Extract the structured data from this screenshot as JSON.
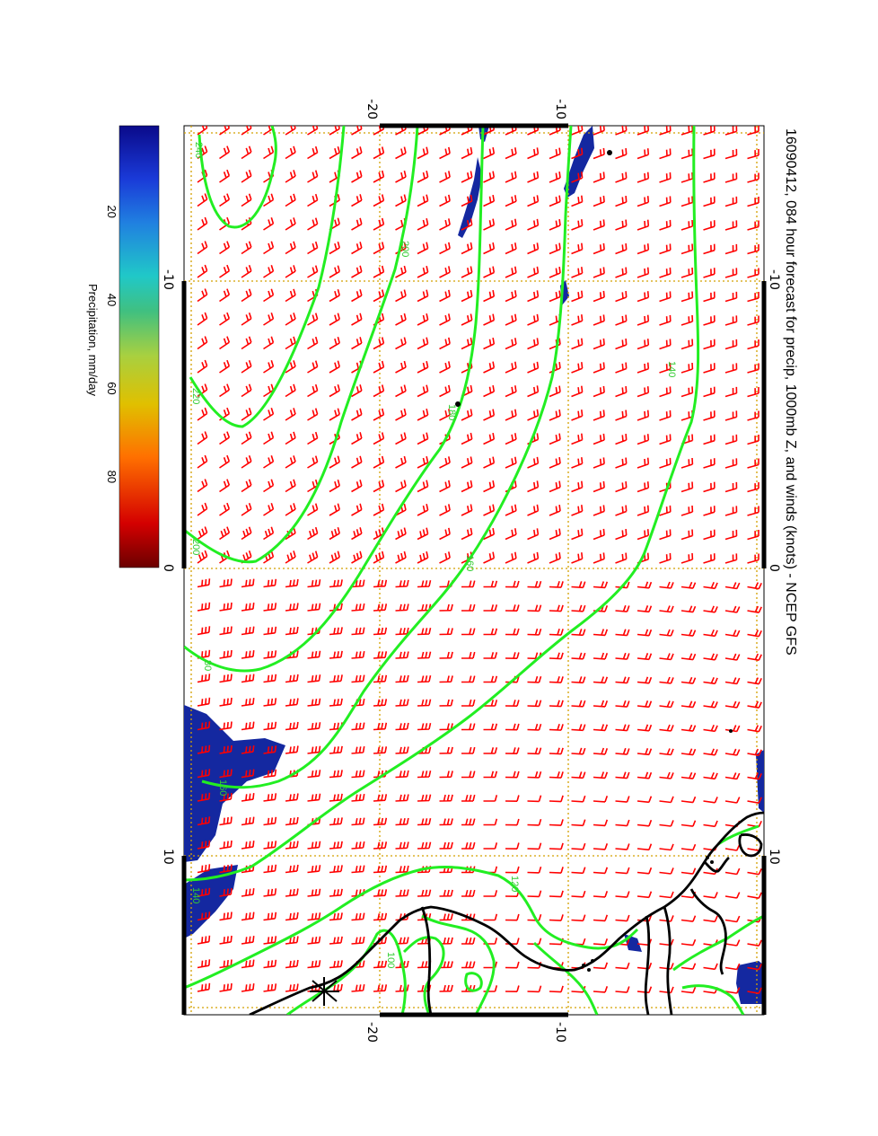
{
  "title": "16090412, 084 hour forecast for precip, 1000mb Z, and winds (knots) - NCEP GFS",
  "axes": {
    "lon_ticks": [
      "-10",
      "0",
      "10"
    ],
    "lat_ticks": [
      "-20",
      "-10"
    ]
  },
  "colorbar": {
    "label": "Precipitation, mm/day",
    "ticks": [
      "20",
      "40",
      "60",
      "80"
    ],
    "range": [
      0,
      100
    ],
    "colors": [
      "#6b0000",
      "#d40000",
      "#ff7000",
      "#e0c000",
      "#a8d040",
      "#40c080",
      "#20c8c8",
      "#2080e0",
      "#1a3ad8",
      "#0a0a8a"
    ]
  },
  "contour_labels": [
    "240",
    "220",
    "200",
    "180",
    "160",
    "140",
    "120",
    "100",
    "80"
  ],
  "map": {
    "land_color": "#000000",
    "contour_color": "#22ee22",
    "wind_barb_color": "#ff0000",
    "precip_color": "#1428a0",
    "grid_color": "#d4a000"
  }
}
